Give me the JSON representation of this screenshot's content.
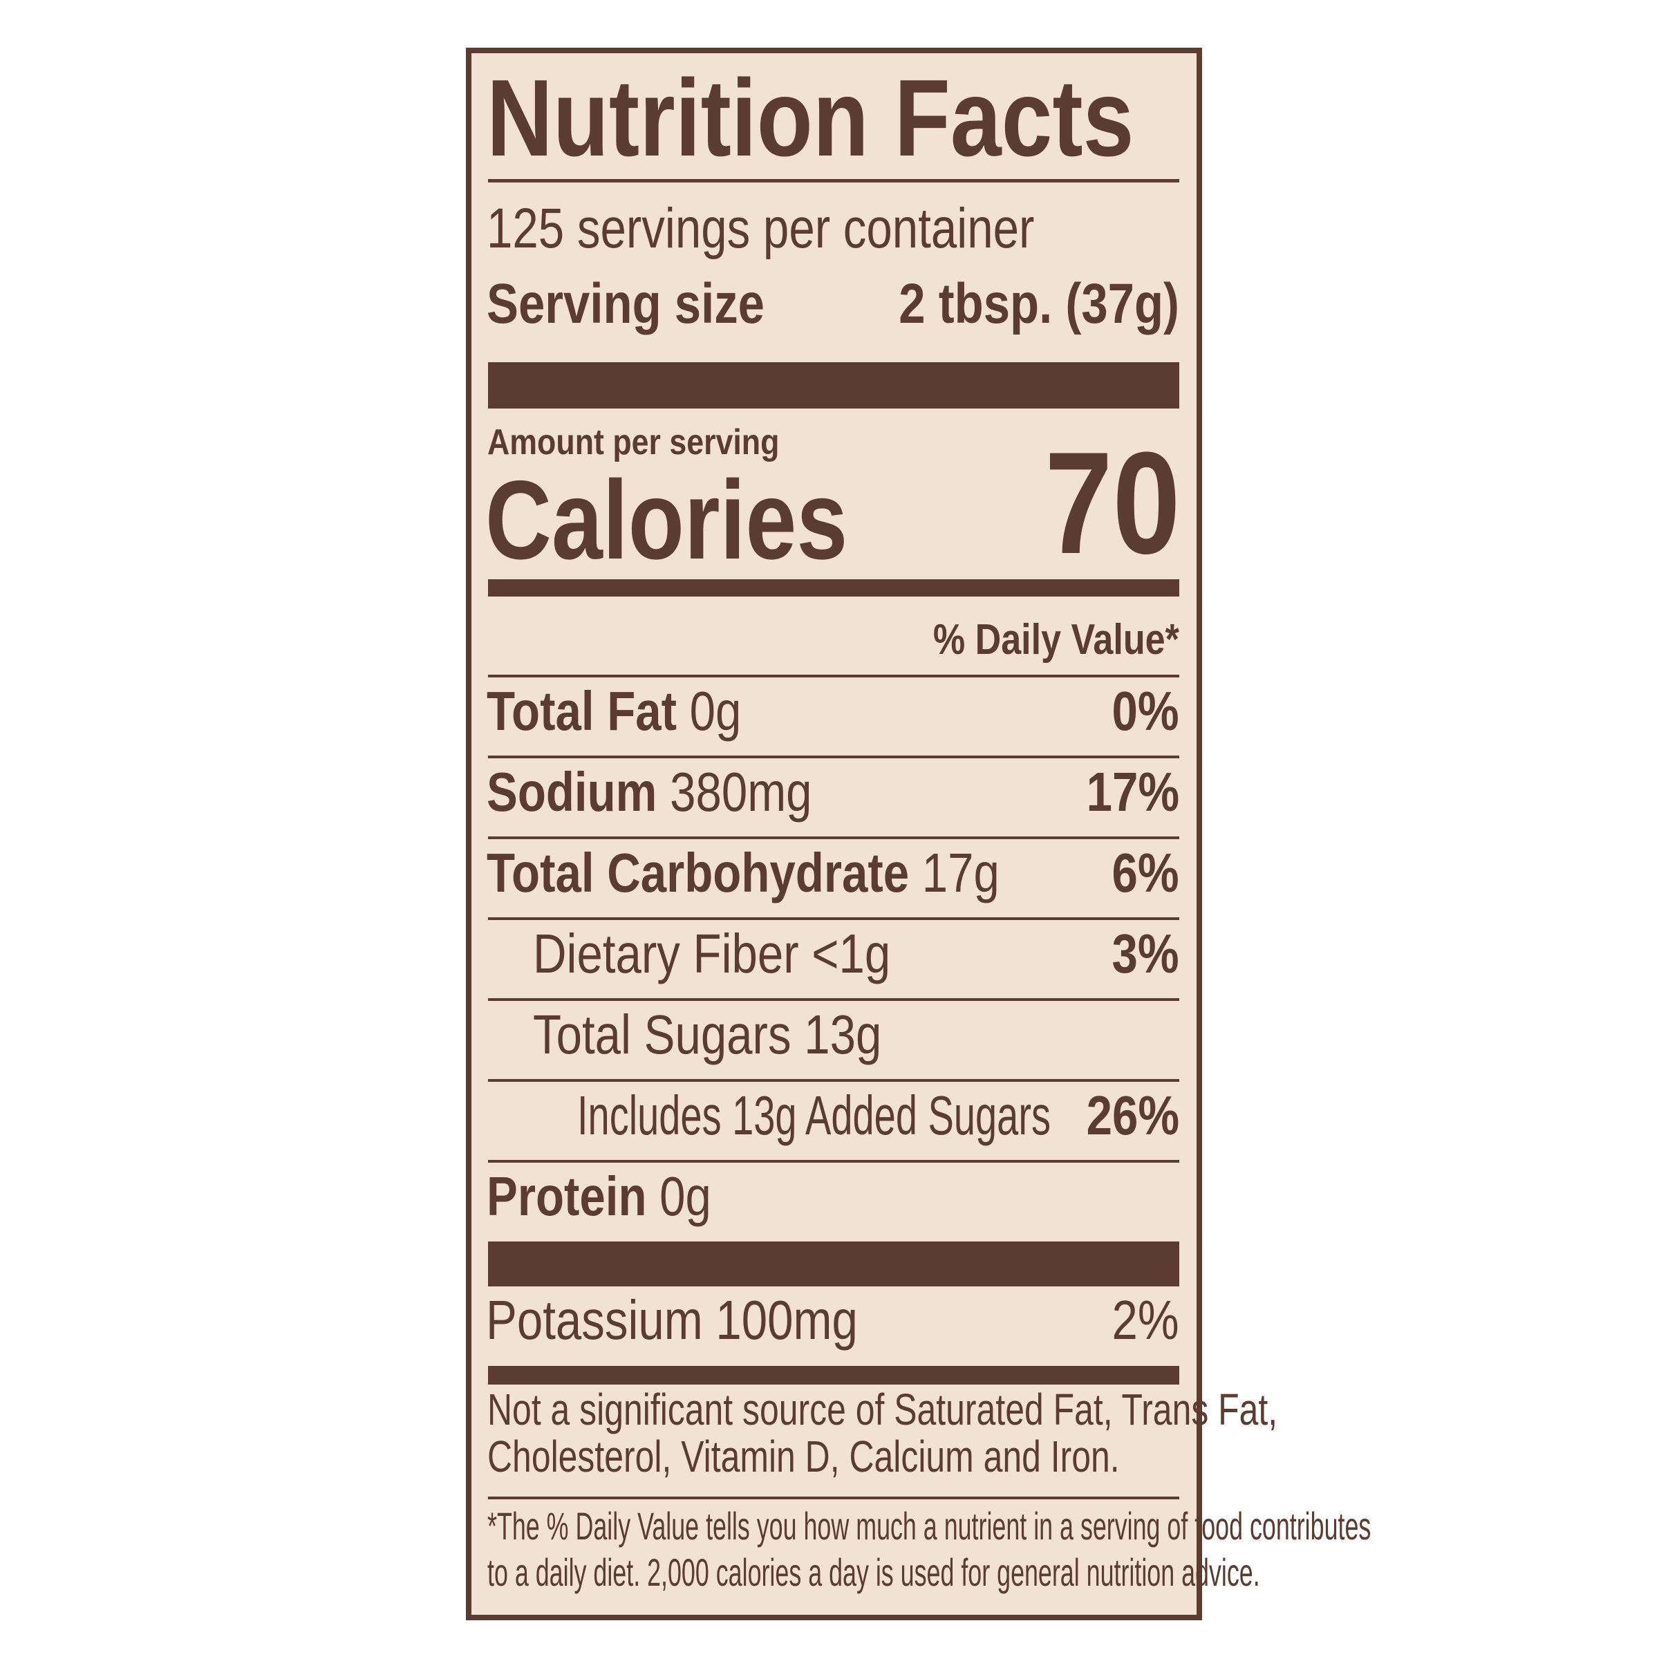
{
  "title": "Nutrition Facts",
  "servings_per_container": "125 servings per container",
  "serving_size_label": "Serving size",
  "serving_size_value": "2 tbsp. (37g)",
  "amount_per_serving": "Amount per serving",
  "calories_label": "Calories",
  "calories_value": "70",
  "daily_value_header": "% Daily Value*",
  "nutrients": [
    {
      "name": "Total Fat",
      "amount": "0g",
      "dv": "0%"
    },
    {
      "name": "Sodium",
      "amount": "380mg",
      "dv": "17%"
    },
    {
      "name": "Total Carbohydrate",
      "amount": "17g",
      "dv": "6%"
    },
    {
      "name": "Dietary Fiber",
      "amount": "<1g",
      "dv": "3%"
    },
    {
      "name": "Total Sugars",
      "amount": "13g",
      "dv": ""
    },
    {
      "name": "Includes 13g Added Sugars",
      "amount": "",
      "dv": "26%"
    },
    {
      "name": "Protein",
      "amount": "0g",
      "dv": ""
    }
  ],
  "potassium": {
    "label": "Potassium 100mg",
    "dv": "2%"
  },
  "not_significant": [
    "Not a significant source of Saturated Fat, Trans Fat,",
    "Cholesterol, Vitamin D, Calcium and Iron."
  ],
  "footnote": [
    "*The % Daily Value tells you how much a nutrient in a serving of food contributes",
    "to a daily diet. 2,000 calories a day is used for general nutrition advice."
  ],
  "colors": {
    "ink": "#5b3c31",
    "background": "#f2e2d2"
  }
}
